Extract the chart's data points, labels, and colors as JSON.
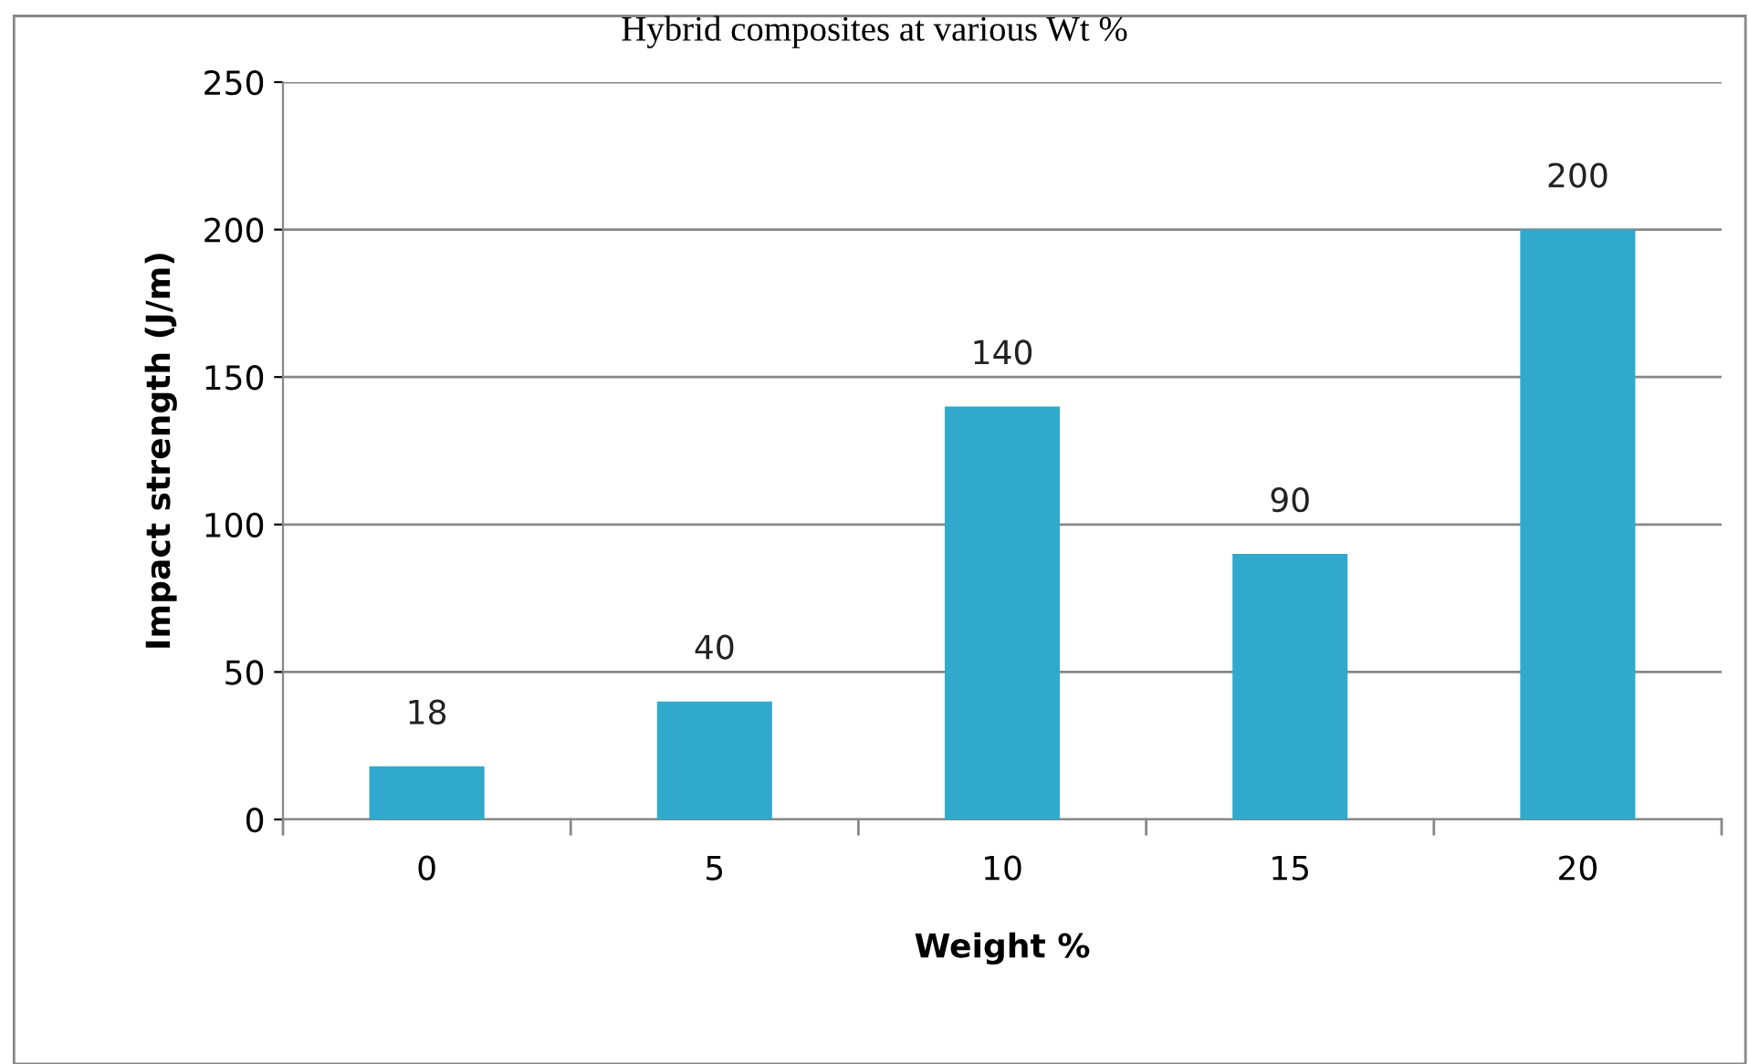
{
  "chart_data": {
    "type": "bar",
    "title": "Hybrid composites at various Wt %",
    "xlabel": "Weight %",
    "ylabel": "Impact strength (J/m)",
    "categories": [
      "0",
      "5",
      "10",
      "15",
      "20"
    ],
    "values": [
      18,
      40,
      140,
      90,
      200
    ],
    "color": "#31a9cc",
    "ylim": [
      0,
      250
    ],
    "yticks": [
      0,
      50,
      100,
      150,
      200,
      250
    ],
    "grid": "y",
    "data_labels": true
  }
}
